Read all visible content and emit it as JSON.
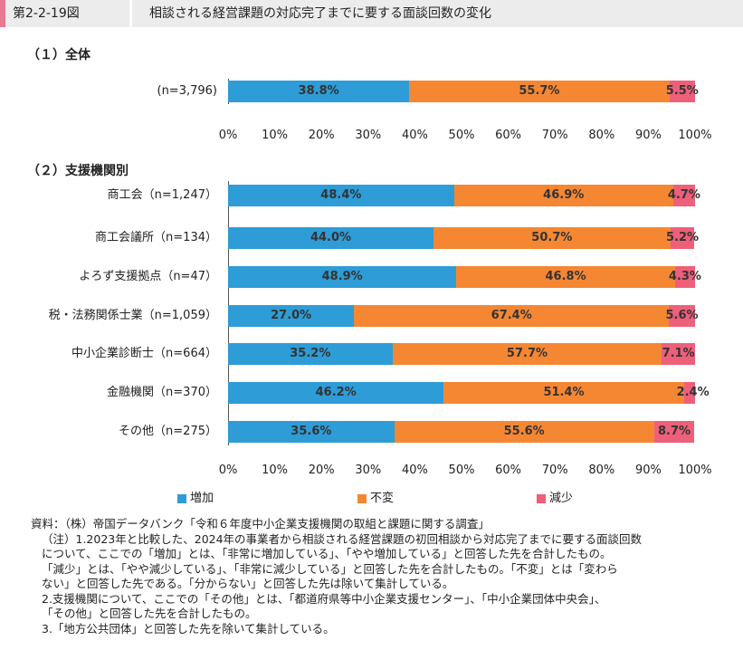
{
  "header": {
    "figure_number": "第2-2-19図",
    "title": "相談される経営課題の対応完了までに要する面談回数の変化"
  },
  "colors": {
    "increase": "#2e9cd6",
    "unchanged": "#f58733",
    "decrease": "#ee5f7a",
    "header_accent": "#e8798f"
  },
  "chart_data": [
    {
      "type": "bar",
      "orientation": "horizontal",
      "stacked": true,
      "percent": true,
      "title": "（１）全体",
      "categories": [
        "(n=3,796)"
      ],
      "series": [
        {
          "name": "増加",
          "values": [
            38.8
          ]
        },
        {
          "name": "不変",
          "values": [
            55.7
          ]
        },
        {
          "name": "減少",
          "values": [
            5.5
          ]
        }
      ],
      "xlim": [
        0,
        100
      ],
      "ticks": [
        "0%",
        "10%",
        "20%",
        "30%",
        "40%",
        "50%",
        "60%",
        "70%",
        "80%",
        "90%",
        "100%"
      ]
    },
    {
      "type": "bar",
      "orientation": "horizontal",
      "stacked": true,
      "percent": true,
      "title": "（２）支援機関別",
      "categories": [
        "商工会（n=1,247）",
        "商工会議所（n=134）",
        "よろず支援拠点（n=47）",
        "税・法務関係士業（n=1,059）",
        "中小企業診断士（n=664）",
        "金融機関（n=370）",
        "その他（n=275）"
      ],
      "series": [
        {
          "name": "増加",
          "values": [
            48.4,
            44.0,
            48.9,
            27.0,
            35.2,
            46.2,
            35.6
          ]
        },
        {
          "name": "不変",
          "values": [
            46.9,
            50.7,
            46.8,
            67.4,
            57.7,
            51.4,
            55.6
          ]
        },
        {
          "name": "減少",
          "values": [
            4.7,
            5.2,
            4.3,
            5.6,
            7.1,
            2.4,
            8.7
          ]
        }
      ],
      "xlim": [
        0,
        100
      ],
      "ticks": [
        "0%",
        "10%",
        "20%",
        "30%",
        "40%",
        "50%",
        "60%",
        "70%",
        "80%",
        "90%",
        "100%"
      ]
    }
  ],
  "legend": [
    "増加",
    "不変",
    "減少"
  ],
  "notes": [
    "資料：（株）帝国データバンク「令和６年度中小企業支援機関の取組と課題に関する調査」",
    "（注）1.2023年と比較した、2024年の事業者から相談される経営課題の初回相談から対応完了までに要する面談回数",
    "について、ここでの「増加」とは、「非常に増加している」、「やや増加している」と回答した先を合計したもの。",
    "「減少」とは、「やや減少している」、「非常に減少している」と回答した先を合計したもの。「不変」とは「変わら",
    "ない」と回答した先である。「分からない」と回答した先は除いて集計している。",
    "2.支援機関について、ここでの「その他」とは、「都道府県等中小企業支援センター」、「中小企業団体中央会」、",
    "「その他」と回答した先を合計したもの。",
    "3.「地方公共団体」と回答した先を除いて集計している。"
  ]
}
